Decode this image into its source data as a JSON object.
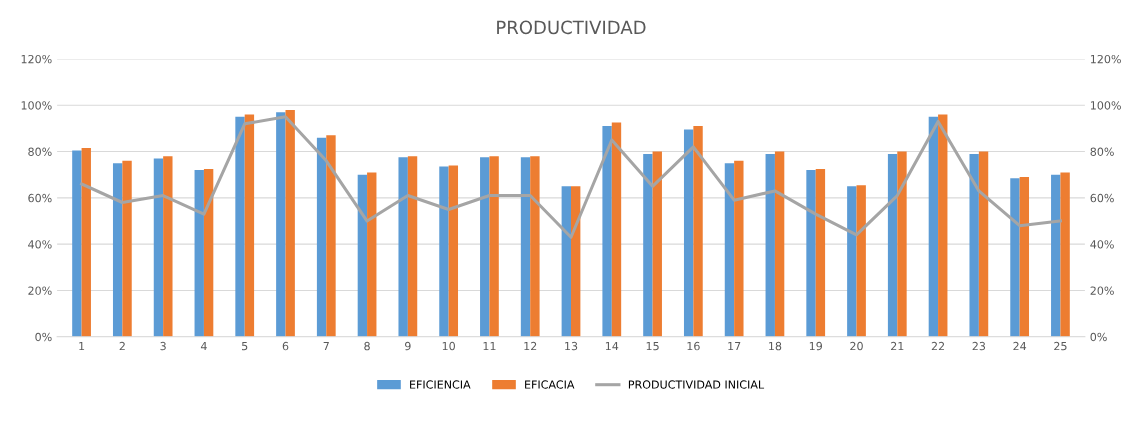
{
  "chart_data": {
    "type": "bar",
    "title": "PRODUCTIVIDAD",
    "categories": [
      "1",
      "2",
      "3",
      "4",
      "5",
      "6",
      "7",
      "8",
      "9",
      "10",
      "11",
      "12",
      "13",
      "14",
      "15",
      "16",
      "17",
      "18",
      "19",
      "20",
      "21",
      "22",
      "23",
      "24",
      "25"
    ],
    "series": [
      {
        "name": "EFICIENCIA",
        "color": "#5b9bd5",
        "values": [
          80.5,
          75,
          77,
          72,
          95,
          97,
          86,
          70,
          77.5,
          73.5,
          77.5,
          77.5,
          65,
          91,
          79,
          89.5,
          75,
          79,
          72,
          65,
          79,
          95,
          79,
          68.5,
          70
        ]
      },
      {
        "name": "EFICACIA",
        "color": "#ed7d31",
        "values": [
          81.5,
          76,
          78,
          72.5,
          96,
          98,
          87,
          71,
          78,
          74,
          78,
          78,
          65,
          92.5,
          80,
          91,
          76,
          80,
          72.5,
          65.5,
          80,
          96,
          80,
          69,
          71
        ]
      },
      {
        "name": "PRODUCTIVIDAD INICIAL",
        "type": "line",
        "color": "#a5a5a5",
        "values": [
          66,
          58,
          61,
          53,
          92,
          95,
          76,
          50,
          61,
          55,
          61,
          61,
          43,
          85,
          65,
          82,
          59,
          63,
          53,
          44,
          61,
          93,
          63,
          48,
          50
        ]
      }
    ],
    "ylim": [
      0,
      120
    ],
    "yticks": [
      {
        "value": 0,
        "label": "0%"
      },
      {
        "value": 20,
        "label": "20%"
      },
      {
        "value": 40,
        "label": "40%"
      },
      {
        "value": 60,
        "label": "60%"
      },
      {
        "value": 80,
        "label": "80%"
      },
      {
        "value": 100,
        "label": "100%"
      },
      {
        "value": 120,
        "label": "120%"
      }
    ],
    "y2lim": [
      0,
      120
    ],
    "y2ticks": [
      {
        "value": 0,
        "label": "0%"
      },
      {
        "value": 20,
        "label": "20%"
      },
      {
        "value": 40,
        "label": "40%"
      },
      {
        "value": 60,
        "label": "60%"
      },
      {
        "value": 80,
        "label": "80%"
      },
      {
        "value": 100,
        "label": "100%"
      },
      {
        "value": 120,
        "label": "120%"
      }
    ],
    "grid": "y",
    "legend": "bottom",
    "marker": "none",
    "line_style": "solid"
  }
}
